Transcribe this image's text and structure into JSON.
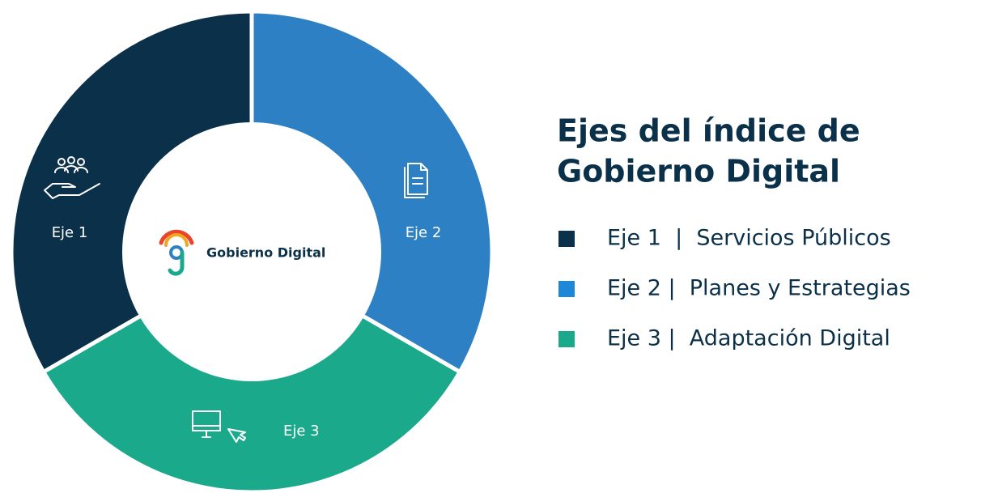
{
  "title": [
    "Ejes del índice de",
    "Gobierno Digital"
  ],
  "center_label": "Gobierno Digital",
  "segments": [
    {
      "label": "Eje 1",
      "color": "#0b3049"
    },
    {
      "label": "Eje 2",
      "color": "#2e80c5"
    },
    {
      "label": "Eje 3",
      "color": "#1aaa8b"
    }
  ],
  "legend": [
    {
      "text": "Eje 1  |  Servicios Públicos",
      "color": "#0b3049"
    },
    {
      "text": "Eje 2 |  Planes y Estrategias",
      "color": "#1e88d6"
    },
    {
      "text": "Eje 3 |  Adaptación Digital",
      "color": "#1aaa8b"
    }
  ]
}
